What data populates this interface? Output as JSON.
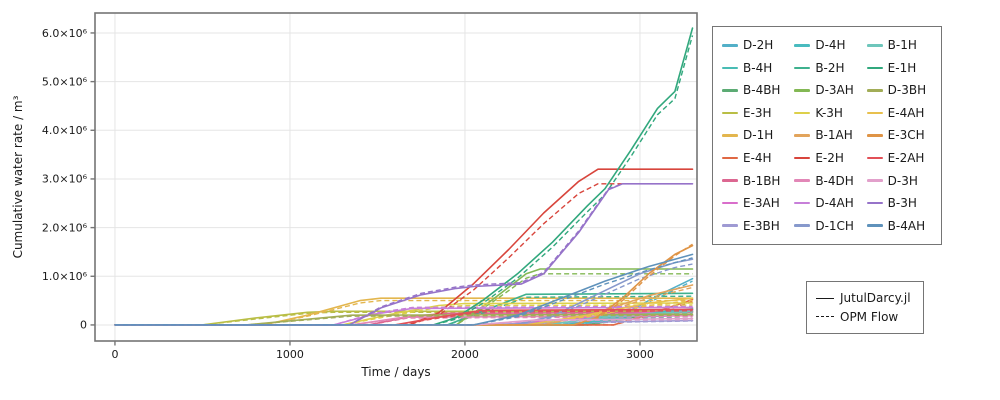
{
  "colors": {
    "background": "#ffffff",
    "frame": "#757575",
    "grid": "#e5e5e5",
    "text": "#1a1a1a",
    "solver_line": "#1a1a1a"
  },
  "chart_data": {
    "type": "line",
    "title": "",
    "xlabel": "Time / days",
    "ylabel": "Cumulative water rate / m³",
    "x_unit": "days",
    "y_unit": "1e6 m³",
    "xlim": [
      -114,
      3326
    ],
    "ylim": [
      -0.33,
      6.41
    ],
    "grid": true,
    "x_ticks": [
      0,
      1000,
      2000,
      3000
    ],
    "x_tick_labels": [
      "0",
      "1000",
      "2000",
      "3000"
    ],
    "y_ticks": [
      0,
      1,
      2,
      3,
      4,
      5,
      6
    ],
    "y_tick_labels": [
      "0",
      "1.0×10⁶",
      "2.0×10⁶",
      "3.0×10⁶",
      "4.0×10⁶",
      "5.0×10⁶",
      "6.0×10⁶"
    ],
    "legend_position": "outside-right",
    "solvers": [
      {
        "label": "JutulDarcy.jl",
        "style": "solid"
      },
      {
        "label": "OPM Flow",
        "style": "dashed"
      }
    ],
    "series": [
      {
        "name": "D-2H",
        "color": "#53b0c8",
        "x": [
          0,
          2650,
          2800,
          2950,
          3100,
          3300
        ],
        "y_jutuldarcy": [
          0,
          0,
          0.08,
          0.3,
          0.6,
          0.95
        ],
        "y_opm": [
          0,
          0,
          0.06,
          0.26,
          0.55,
          0.9
        ]
      },
      {
        "name": "B-4H",
        "color": "#48bcb4",
        "x": [
          0,
          2300,
          2600,
          3300
        ],
        "y_jutuldarcy": [
          0,
          0,
          0.12,
          0.2
        ],
        "y_opm": [
          0,
          0,
          0.1,
          0.17
        ]
      },
      {
        "name": "B-4BH",
        "color": "#5cab74",
        "x": [
          0,
          2700,
          3000,
          3300
        ],
        "y_jutuldarcy": [
          0,
          0,
          0.18,
          0.33
        ],
        "y_opm": [
          0,
          0,
          0.15,
          0.29
        ]
      },
      {
        "name": "E-3H",
        "color": "#b9be45",
        "x": [
          0,
          500,
          800,
          1100,
          1250,
          3300
        ],
        "y_jutuldarcy": [
          0,
          0,
          0.14,
          0.26,
          0.28,
          0.28
        ],
        "y_opm": [
          0,
          0,
          0.12,
          0.24,
          0.26,
          0.26
        ]
      },
      {
        "name": "D-1H",
        "color": "#e3b64e",
        "x": [
          0,
          850,
          1100,
          1400,
          1520,
          3300
        ],
        "y_jutuldarcy": [
          0,
          0,
          0.2,
          0.5,
          0.55,
          0.55
        ],
        "y_opm": [
          0,
          0,
          0.18,
          0.45,
          0.5,
          0.5
        ]
      },
      {
        "name": "E-4H",
        "color": "#e06844",
        "x": [
          0,
          2850,
          3050,
          3300
        ],
        "y_jutuldarcy": [
          0,
          0,
          0.22,
          0.52
        ],
        "y_opm": [
          0,
          0,
          0.19,
          0.48
        ]
      },
      {
        "name": "B-1BH",
        "color": "#dc6791",
        "x": [
          0,
          1450,
          1700,
          1900,
          3300
        ],
        "y_jutuldarcy": [
          0,
          0,
          0.18,
          0.24,
          0.26
        ],
        "y_opm": [
          0,
          0,
          0.16,
          0.22,
          0.24
        ]
      },
      {
        "name": "E-3AH",
        "color": "#d96ecb",
        "x": [
          0,
          2200,
          2500,
          2900,
          3300
        ],
        "y_jutuldarcy": [
          0,
          0,
          0.1,
          0.22,
          0.3
        ],
        "y_opm": [
          0,
          0,
          0.09,
          0.2,
          0.27
        ]
      },
      {
        "name": "E-3BH",
        "color": "#9f9ad3",
        "x": [
          0,
          2000,
          2600,
          3300
        ],
        "y_jutuldarcy": [
          0,
          0,
          0.05,
          0.09
        ],
        "y_opm": [
          0,
          0,
          0.04,
          0.08
        ]
      },
      {
        "name": "D-4H",
        "color": "#49bbbf",
        "x": [
          0,
          2550,
          2850,
          3150,
          3300
        ],
        "y_jutuldarcy": [
          0,
          0,
          0.12,
          0.28,
          0.33
        ],
        "y_opm": [
          0,
          0,
          0.1,
          0.25,
          0.3
        ]
      },
      {
        "name": "B-2H",
        "color": "#3eb18e",
        "x": [
          0,
          1900,
          2150,
          2350,
          3300
        ],
        "y_jutuldarcy": [
          0,
          0,
          0.35,
          0.63,
          0.65
        ],
        "y_opm": [
          0,
          0,
          0.3,
          0.57,
          0.59
        ]
      },
      {
        "name": "D-3AH",
        "color": "#83b854",
        "x": [
          0,
          1950,
          2150,
          2350,
          2430,
          3300
        ],
        "y_jutuldarcy": [
          0,
          0,
          0.5,
          1.05,
          1.15,
          1.15
        ],
        "y_opm": [
          0,
          0,
          0.45,
          0.96,
          1.05,
          1.05
        ]
      },
      {
        "name": "K-3H",
        "color": "#ddd04a",
        "x": [
          0,
          1300,
          1550,
          1850,
          2000,
          3300
        ],
        "y_jutuldarcy": [
          0,
          0,
          0.2,
          0.4,
          0.44,
          0.45
        ],
        "y_opm": [
          0,
          0,
          0.17,
          0.36,
          0.4,
          0.41
        ]
      },
      {
        "name": "B-1AH",
        "color": "#e2a45c",
        "x": [
          0,
          2450,
          2750,
          3050,
          3300
        ],
        "y_jutuldarcy": [
          0,
          0,
          0.25,
          0.6,
          0.82
        ],
        "y_opm": [
          0,
          0,
          0.22,
          0.55,
          0.77
        ]
      },
      {
        "name": "E-2H",
        "color": "#d8453c",
        "x": [
          0,
          1680,
          1850,
          2050,
          2250,
          2450,
          2650,
          2760,
          3300
        ],
        "y_jutuldarcy": [
          0,
          0,
          0.25,
          0.85,
          1.55,
          2.3,
          2.95,
          3.2,
          3.2
        ],
        "y_opm": [
          0,
          0,
          0.2,
          0.72,
          1.38,
          2.08,
          2.7,
          2.9,
          2.9
        ]
      },
      {
        "name": "B-4DH",
        "color": "#e287b7",
        "x": [
          0,
          1350,
          1650,
          3300
        ],
        "y_jutuldarcy": [
          0,
          0,
          0.16,
          0.19
        ],
        "y_opm": [
          0,
          0,
          0.14,
          0.17
        ]
      },
      {
        "name": "D-4AH",
        "color": "#c77fd9",
        "x": [
          0,
          1250,
          1480,
          1700,
          3300
        ],
        "y_jutuldarcy": [
          0,
          0,
          0.22,
          0.34,
          0.36
        ],
        "y_opm": [
          0,
          0,
          0.24,
          0.36,
          0.38
        ]
      },
      {
        "name": "D-1CH",
        "color": "#8799cc",
        "x": [
          0,
          2280,
          2500,
          2750,
          3000,
          3200,
          3300
        ],
        "y_jutuldarcy": [
          0,
          0,
          0.18,
          0.62,
          1.05,
          1.28,
          1.35
        ],
        "y_opm": [
          0,
          0,
          0.15,
          0.55,
          0.95,
          1.18,
          1.25
        ]
      },
      {
        "name": "B-1H",
        "color": "#6ec6bb",
        "x": [
          0,
          2480,
          2800,
          3300
        ],
        "y_jutuldarcy": [
          0,
          0,
          0.18,
          0.28
        ],
        "y_opm": [
          0,
          0,
          0.16,
          0.25
        ]
      },
      {
        "name": "E-1H",
        "color": "#31a87d",
        "x": [
          0,
          1820,
          1950,
          2100,
          2300,
          2500,
          2700,
          2800,
          2950,
          3100,
          3200,
          3300
        ],
        "y_jutuldarcy": [
          0,
          0,
          0.15,
          0.5,
          1.05,
          1.7,
          2.45,
          2.8,
          3.6,
          4.45,
          4.8,
          6.1
        ],
        "y_opm": [
          0,
          0,
          0.12,
          0.44,
          0.96,
          1.6,
          2.33,
          2.68,
          3.47,
          4.32,
          4.65,
          5.95
        ]
      },
      {
        "name": "D-3BH",
        "color": "#a2ad57",
        "x": [
          0,
          750,
          1050,
          1350,
          3300
        ],
        "y_jutuldarcy": [
          0,
          0,
          0.1,
          0.2,
          0.22
        ],
        "y_opm": [
          0,
          0,
          0.09,
          0.18,
          0.2
        ]
      },
      {
        "name": "E-4AH",
        "color": "#e8c04d",
        "x": [
          0,
          2350,
          2700,
          3050,
          3300
        ],
        "y_jutuldarcy": [
          0,
          0,
          0.2,
          0.45,
          0.55
        ],
        "y_opm": [
          0,
          0,
          0.17,
          0.4,
          0.5
        ]
      },
      {
        "name": "E-3CH",
        "color": "#df9446",
        "x": [
          0,
          2620,
          2750,
          2900,
          3050,
          3200,
          3300
        ],
        "y_jutuldarcy": [
          0,
          0,
          0.15,
          0.55,
          1.05,
          1.45,
          1.63
        ],
        "y_opm": [
          0,
          0,
          0.12,
          0.5,
          1.0,
          1.42,
          1.66
        ]
      },
      {
        "name": "E-2AH",
        "color": "#e25057",
        "x": [
          0,
          1600,
          1850,
          2100,
          3300
        ],
        "y_jutuldarcy": [
          0,
          0,
          0.16,
          0.3,
          0.32
        ],
        "y_opm": [
          0,
          0,
          0.14,
          0.27,
          0.29
        ]
      },
      {
        "name": "D-3H",
        "color": "#e2a0cb",
        "x": [
          0,
          2050,
          2400,
          3300
        ],
        "y_jutuldarcy": [
          0,
          0,
          0.1,
          0.13
        ],
        "y_opm": [
          0,
          0,
          0.09,
          0.11
        ]
      },
      {
        "name": "B-3H",
        "color": "#9673c9",
        "x": [
          0,
          1340,
          1520,
          1750,
          1950,
          2050,
          2320,
          2450,
          2650,
          2820,
          2900,
          3300
        ],
        "y_jutuldarcy": [
          0,
          0,
          0.35,
          0.62,
          0.75,
          0.79,
          0.84,
          1.05,
          1.9,
          2.78,
          2.9,
          2.9
        ],
        "y_opm": [
          0,
          0,
          0.37,
          0.65,
          0.78,
          0.82,
          0.87,
          1.08,
          1.93,
          2.8,
          2.9,
          2.9
        ]
      },
      {
        "name": "B-4AH",
        "color": "#5f92bb",
        "x": [
          0,
          2050,
          2300,
          2550,
          2800,
          3050,
          3300
        ],
        "y_jutuldarcy": [
          0,
          0,
          0.2,
          0.55,
          0.9,
          1.2,
          1.45
        ],
        "y_opm": [
          0,
          0,
          0.17,
          0.5,
          0.84,
          1.13,
          1.38
        ]
      }
    ]
  }
}
